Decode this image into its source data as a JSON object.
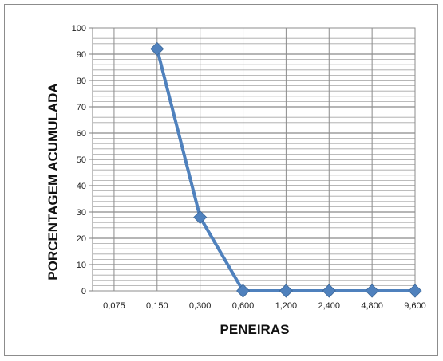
{
  "chart_data": {
    "type": "line",
    "title": "",
    "xlabel": "PENEIRAS",
    "ylabel": "PORCENTAGEM ACUMULADA",
    "categories": [
      "0,075",
      "0,150",
      "0,300",
      "0,600",
      "1,200",
      "2,400",
      "4,800",
      "9,600"
    ],
    "y_ticks": [
      "0",
      "10",
      "20",
      "30",
      "40",
      "50",
      "60",
      "70",
      "80",
      "90",
      "100"
    ],
    "ylim": [
      0,
      100
    ],
    "grid": true,
    "legend": "none",
    "series": [
      {
        "values": [
          null,
          92,
          28,
          0,
          0,
          0,
          0,
          0
        ],
        "color": "#4f81bd",
        "marker": "diamond"
      }
    ]
  }
}
